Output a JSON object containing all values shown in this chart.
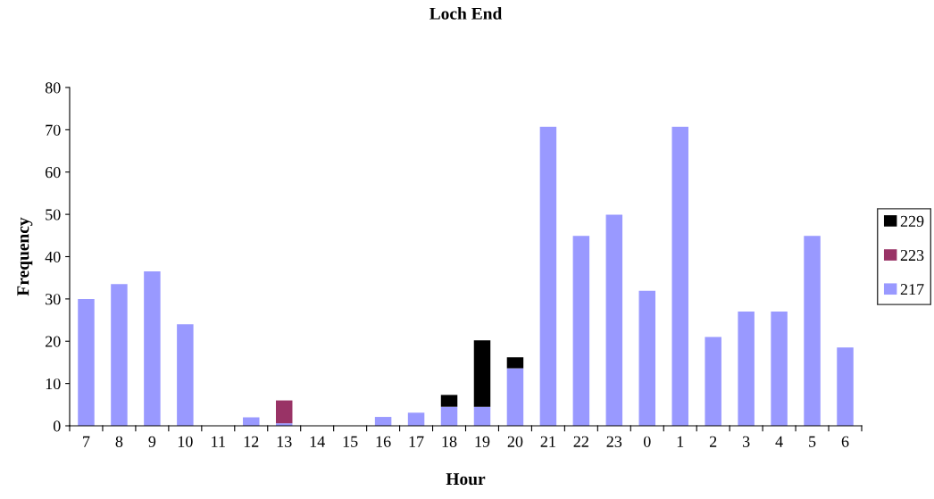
{
  "chart_data": {
    "type": "bar",
    "title": "Loch End",
    "xlabel": "Hour",
    "ylabel": "Frequency",
    "categories": [
      "7",
      "8",
      "9",
      "10",
      "11",
      "12",
      "13",
      "14",
      "15",
      "16",
      "17",
      "18",
      "19",
      "20",
      "21",
      "22",
      "23",
      "0",
      "1",
      "2",
      "3",
      "4",
      "5",
      "6"
    ],
    "stacked": true,
    "series": [
      {
        "name": "217",
        "color": "#9999ff",
        "values": [
          30,
          33.5,
          36.5,
          24,
          0,
          2,
          0.6,
          0,
          0,
          2.1,
          3.1,
          4.5,
          4.5,
          13.6,
          70.7,
          44.9,
          49.9,
          31.9,
          70.7,
          21,
          27,
          27,
          44.9,
          18.5
        ]
      },
      {
        "name": "223",
        "color": "#993366",
        "values": [
          0,
          0,
          0,
          0,
          0,
          0,
          5.4,
          0,
          0,
          0,
          0,
          0,
          0,
          0,
          0,
          0,
          0,
          0,
          0,
          0,
          0,
          0,
          0,
          0
        ]
      },
      {
        "name": "229",
        "color": "#000000",
        "values": [
          0,
          0,
          0,
          0,
          0,
          0,
          0,
          0,
          0,
          0,
          0,
          2.8,
          15.7,
          2.6,
          0,
          0,
          0,
          0,
          0,
          0,
          0,
          0,
          0,
          0
        ]
      }
    ],
    "ylim": [
      0,
      80
    ],
    "yticks": [
      0,
      10,
      20,
      30,
      40,
      50,
      60,
      70,
      80
    ],
    "grid": false,
    "legend": "right"
  }
}
